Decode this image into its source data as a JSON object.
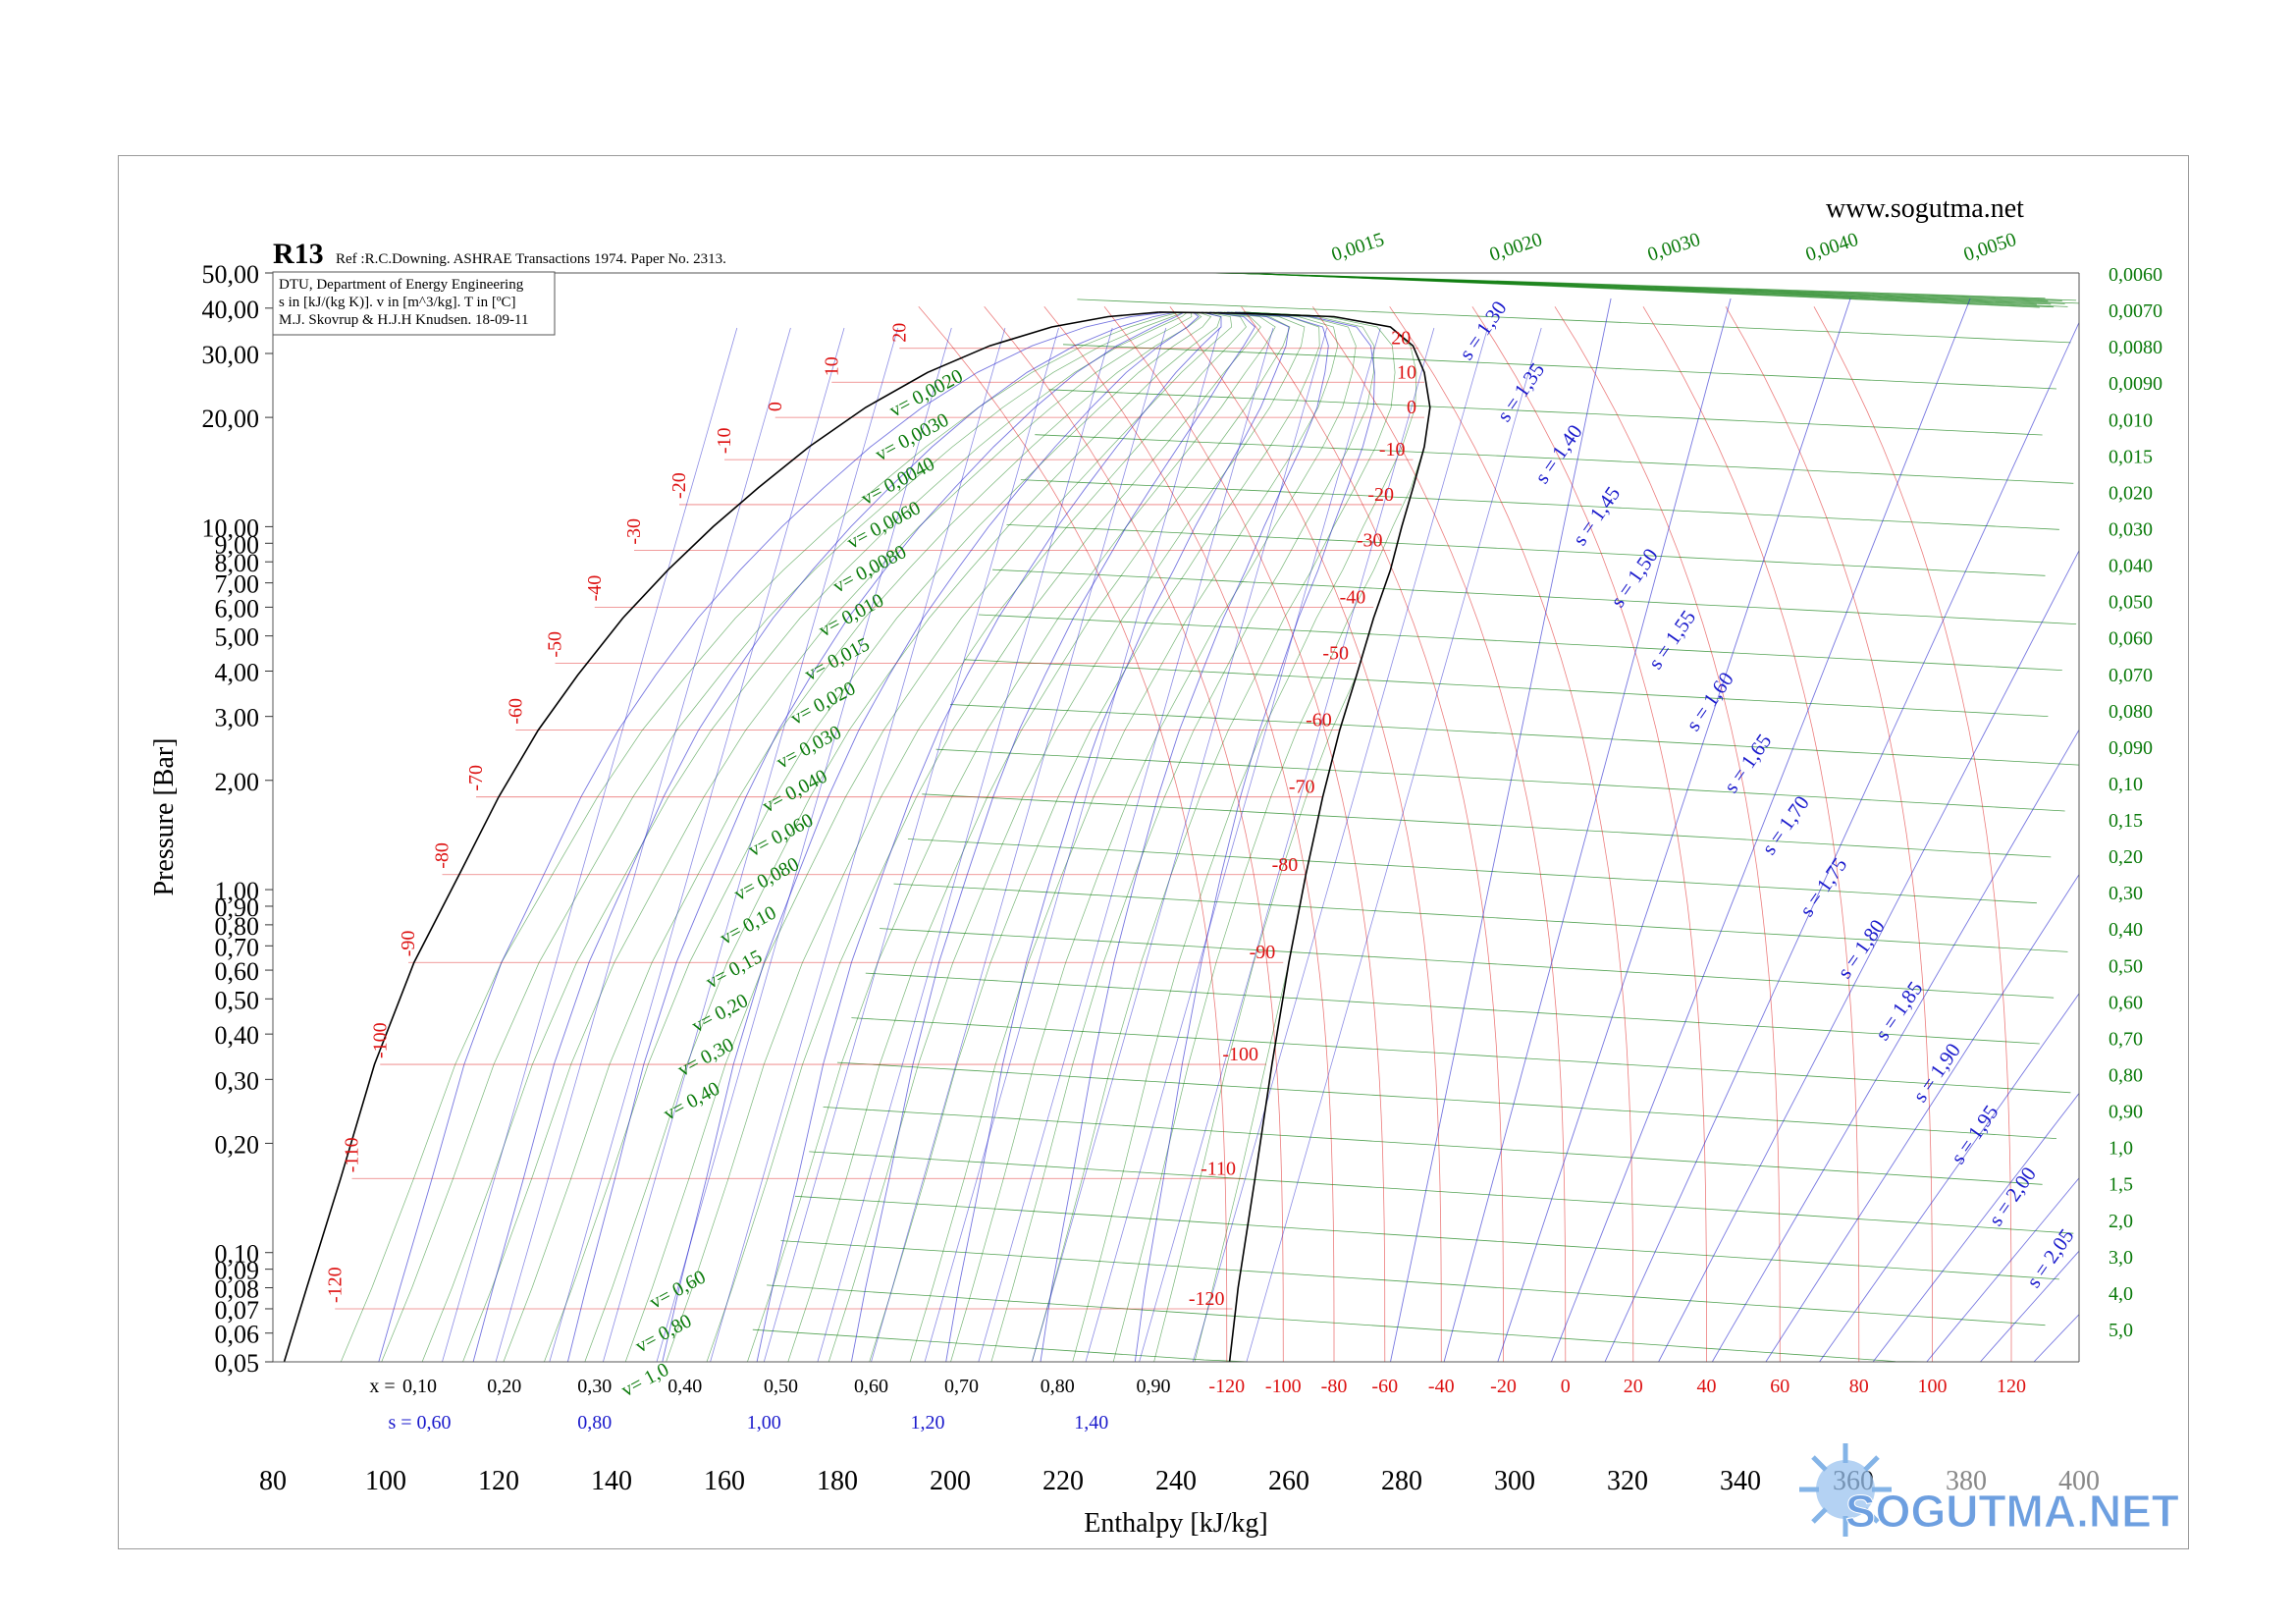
{
  "chart_data": {
    "type": "line",
    "title": "R13",
    "reference": "Ref :R.C.Downing. ASHRAE Transactions 1974. Paper No. 2313.",
    "info_lines": [
      "DTU, Department of Energy Engineering",
      "s in [kJ/(kg K)]. v in [m^3/kg]. T in [ºC]",
      "M.J. Skovrup & H.J.H Knudsen. 18-09-11"
    ],
    "website": "www.sogutma.net",
    "xlabel": "Enthalpy [kJ/kg]",
    "ylabel": "Pressure [Bar]",
    "xlim": [
      80,
      400
    ],
    "ylim": [
      0.05,
      50
    ],
    "yscale": "log",
    "grid": false,
    "x_ticks": [
      "80",
      "100",
      "120",
      "140",
      "160",
      "180",
      "200",
      "220",
      "240",
      "260",
      "280",
      "300",
      "320",
      "340",
      "360",
      "380",
      "400"
    ],
    "y_ticks": [
      {
        "v": 50,
        "t": "50,00"
      },
      {
        "v": 40,
        "t": "40,00"
      },
      {
        "v": 30,
        "t": "30,00"
      },
      {
        "v": 20,
        "t": "20,00"
      },
      {
        "v": 10,
        "t": "10,00"
      },
      {
        "v": 9,
        "t": "9,00"
      },
      {
        "v": 8,
        "t": "8,00"
      },
      {
        "v": 7,
        "t": "7,00"
      },
      {
        "v": 6,
        "t": "6,00"
      },
      {
        "v": 5,
        "t": "5,00"
      },
      {
        "v": 4,
        "t": "4,00"
      },
      {
        "v": 3,
        "t": "3,00"
      },
      {
        "v": 2,
        "t": "2,00"
      },
      {
        "v": 1,
        "t": "1,00"
      },
      {
        "v": 0.9,
        "t": "0,90"
      },
      {
        "v": 0.8,
        "t": "0,80"
      },
      {
        "v": 0.7,
        "t": "0,70"
      },
      {
        "v": 0.6,
        "t": "0,60"
      },
      {
        "v": 0.5,
        "t": "0,50"
      },
      {
        "v": 0.4,
        "t": "0,40"
      },
      {
        "v": 0.3,
        "t": "0,30"
      },
      {
        "v": 0.2,
        "t": "0,20"
      },
      {
        "v": 0.1,
        "t": "0,10"
      },
      {
        "v": 0.09,
        "t": "0,09"
      },
      {
        "v": 0.08,
        "t": "0,08"
      },
      {
        "v": 0.07,
        "t": "0,07"
      },
      {
        "v": 0.06,
        "t": "0,06"
      },
      {
        "v": 0.05,
        "t": "0,05"
      }
    ],
    "quality_scale": {
      "prefix": "x = ",
      "values": [
        {
          "x": 106,
          "t": "0,10"
        },
        {
          "x": 121,
          "t": "0,20"
        },
        {
          "x": 137,
          "t": "0,30"
        },
        {
          "x": 153,
          "t": "0,40"
        },
        {
          "x": 170,
          "t": "0,50"
        },
        {
          "x": 186,
          "t": "0,60"
        },
        {
          "x": 202,
          "t": "0,70"
        },
        {
          "x": 219,
          "t": "0,80"
        },
        {
          "x": 236,
          "t": "0,90"
        }
      ]
    },
    "entropy_scale": {
      "values": [
        {
          "x": 106,
          "t": "s = 0,60"
        },
        {
          "x": 137,
          "t": "0,80"
        },
        {
          "x": 167,
          "t": "1,00"
        },
        {
          "x": 196,
          "t": "1,20"
        },
        {
          "x": 225,
          "t": "1,40"
        }
      ]
    },
    "temperature_scale": {
      "values": [
        {
          "x": 249,
          "t": "-120"
        },
        {
          "x": 259,
          "t": "-100"
        },
        {
          "x": 268,
          "t": "-80"
        },
        {
          "x": 277,
          "t": "-60"
        },
        {
          "x": 287,
          "t": "-40"
        },
        {
          "x": 298,
          "t": "-20"
        },
        {
          "x": 309,
          "t": "0"
        },
        {
          "x": 321,
          "t": "20"
        },
        {
          "x": 334,
          "t": "40"
        },
        {
          "x": 347,
          "t": "60"
        },
        {
          "x": 361,
          "t": "80"
        },
        {
          "x": 374,
          "t": "100"
        },
        {
          "x": 388,
          "t": "120"
        }
      ]
    },
    "saturation_dome": {
      "liquid": [
        [
          82,
          0.05
        ],
        [
          86,
          0.08
        ],
        [
          92,
          0.16
        ],
        [
          98,
          0.33
        ],
        [
          105,
          0.63
        ],
        [
          113,
          1.1
        ],
        [
          120,
          1.8
        ],
        [
          127,
          2.75
        ],
        [
          134,
          3.9
        ],
        [
          142,
          5.6
        ],
        [
          150,
          7.6
        ],
        [
          158,
          10.0
        ],
        [
          166,
          12.8
        ],
        [
          175,
          16.6
        ],
        [
          185,
          21.3
        ],
        [
          196,
          26.6
        ],
        [
          207,
          31.5
        ],
        [
          218,
          35.5
        ],
        [
          228,
          37.9
        ],
        [
          237,
          39.0
        ]
      ],
      "vapor": [
        [
          249.5,
          0.05
        ],
        [
          251,
          0.08
        ],
        [
          254,
          0.16
        ],
        [
          257,
          0.33
        ],
        [
          260,
          0.63
        ],
        [
          263,
          1.1
        ],
        [
          266,
          1.8
        ],
        [
          269,
          2.75
        ],
        [
          272,
          3.9
        ],
        [
          275,
          5.6
        ],
        [
          278,
          7.6
        ],
        [
          280,
          10.0
        ],
        [
          282,
          12.8
        ],
        [
          284,
          16.6
        ],
        [
          285,
          21.3
        ],
        [
          284,
          26.6
        ],
        [
          282,
          31.5
        ],
        [
          278,
          35.5
        ],
        [
          268,
          37.9
        ],
        [
          252,
          38.7
        ],
        [
          237,
          39.0
        ]
      ]
    },
    "isotherms": [
      {
        "T": "-120",
        "p": 0.07,
        "hl": 91,
        "hv": 250
      },
      {
        "T": "-110",
        "p": 0.16,
        "hl": 94,
        "hv": 252
      },
      {
        "T": "-100",
        "p": 0.33,
        "hl": 99,
        "hv": 256
      },
      {
        "T": "-90",
        "p": 0.63,
        "hl": 104,
        "hv": 259
      },
      {
        "T": "-80",
        "p": 1.1,
        "hl": 110,
        "hv": 263
      },
      {
        "T": "-70",
        "p": 1.8,
        "hl": 116,
        "hv": 266
      },
      {
        "T": "-60",
        "p": 2.75,
        "hl": 123,
        "hv": 269
      },
      {
        "T": "-50",
        "p": 4.2,
        "hl": 130,
        "hv": 272
      },
      {
        "T": "-40",
        "p": 6.0,
        "hl": 137,
        "hv": 275
      },
      {
        "T": "-30",
        "p": 8.6,
        "hl": 144,
        "hv": 278
      },
      {
        "T": "-20",
        "p": 11.5,
        "hl": 152,
        "hv": 280
      },
      {
        "T": "-10",
        "p": 15.3,
        "hl": 160,
        "hv": 282
      },
      {
        "T": "0",
        "p": 20.0,
        "hl": 169,
        "hv": 284
      },
      {
        "T": "10",
        "p": 25.0,
        "hl": 179,
        "hv": 284
      },
      {
        "T": "20",
        "p": 31.0,
        "hl": 191,
        "hv": 283
      }
    ],
    "isochores": [
      "0,0015",
      "0,0020",
      "0,0030",
      "0,0040",
      "0,0050",
      "0,0060",
      "0,0070",
      "0,0080",
      "0,0090",
      "0,010",
      "0,015",
      "0,020",
      "0,030",
      "0,040",
      "0,050",
      "0,060",
      "0,070",
      "0,080",
      "0,090",
      "0,10",
      "0,15",
      "0,20",
      "0,30",
      "0,40",
      "0,50",
      "0,60",
      "0,70",
      "0,80",
      "0,90",
      "1,0",
      "1,5",
      "2,0",
      "3,0",
      "4,0",
      "5,0"
    ],
    "isochore_labels": [
      "v= 0,0020",
      "v= 0,0030",
      "v= 0,0040",
      "v= 0,0060",
      "v= 0,0080",
      "v= 0,010",
      "v= 0,015",
      "v= 0,020",
      "v= 0,030",
      "v= 0,040",
      "v= 0,060",
      "v= 0,080",
      "v= 0,10",
      "v= 0,15",
      "v= 0,20",
      "v= 0,30",
      "v= 0,40",
      "v= 0,60",
      "v= 0,80",
      "v= 1,0"
    ],
    "isentropes": [
      "s = 1,30",
      "s = 1,35",
      "s = 1,40",
      "s = 1,45",
      "s = 1,50",
      "s = 1,55",
      "s = 1,60",
      "s = 1,65",
      "s = 1,70",
      "s = 1,75",
      "s = 1,80",
      "s = 1,85",
      "s = 1,90",
      "s = 1,95",
      "s = 2,00",
      "s = 2,05"
    ],
    "colors": {
      "temperature": "#dd1111",
      "entropy": "#1a1acc",
      "volume": "#0a7a0a",
      "dome": "#000000",
      "frame": "#9a9a9a",
      "watermark": "#3d7fd6"
    }
  },
  "watermark": {
    "text": "SOGUTMA.NET"
  }
}
